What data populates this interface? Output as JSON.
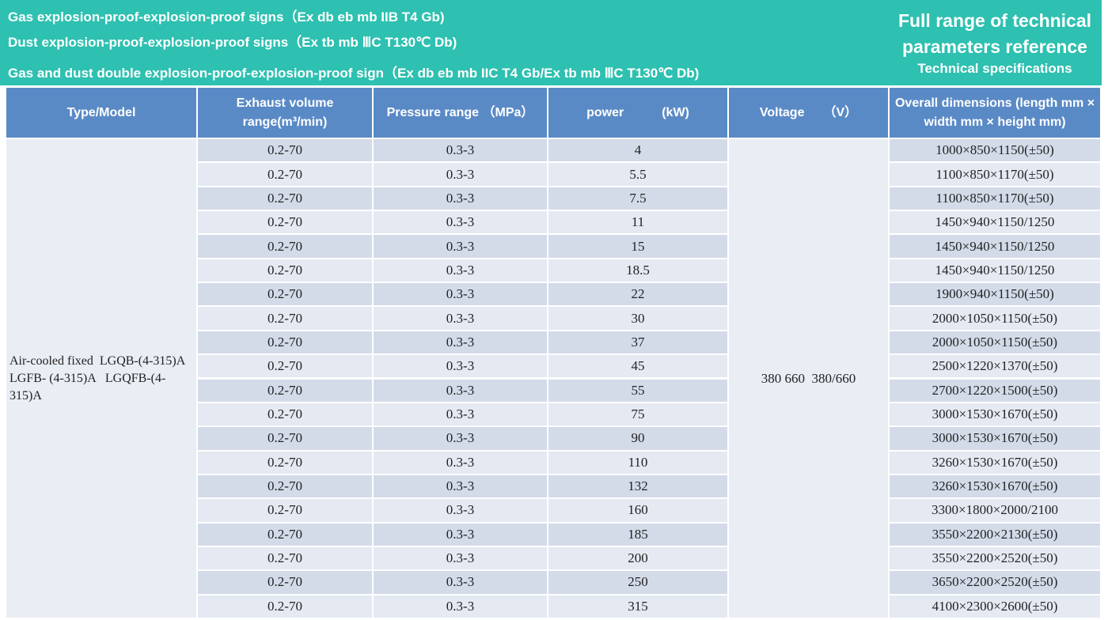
{
  "header": {
    "lines": [
      "Gas explosion-proof-explosion-proof signs（Ex db eb mb IIB T4 Gb)",
      "Dust explosion-proof-explosion-proof signs（Ex tb mb ⅢC T130℃ Db)",
      "Gas and dust double explosion-proof-explosion-proof sign（Ex db eb mb IIC T4 Gb/Ex tb mb ⅢC T130℃ Db)"
    ],
    "title": "Full range of technical parameters reference",
    "subtitle": "Technical specifications"
  },
  "table": {
    "columns": [
      "Type/Model",
      "Exhaust volume range(m³/min)",
      "Pressure range （MPa）",
      "power　　　(kW)",
      "Voltage　　（V）",
      "Overall dimensions (length mm × width mm × height mm)"
    ],
    "model": "Air-cooled fixed  LGQB-(4-315)A    LGFB- (4-315)A   LGQFB-(4-315)A",
    "voltage": "380 660  380/660",
    "rows": [
      [
        "0.2-70",
        "0.3-3",
        "4",
        "1000×850×1150(±50)"
      ],
      [
        "0.2-70",
        "0.3-3",
        "5.5",
        "1100×850×1170(±50)"
      ],
      [
        "0.2-70",
        "0.3-3",
        "7.5",
        "1100×850×1170(±50)"
      ],
      [
        "0.2-70",
        "0.3-3",
        "11",
        "1450×940×1150/1250"
      ],
      [
        "0.2-70",
        "0.3-3",
        "15",
        "1450×940×1150/1250"
      ],
      [
        "0.2-70",
        "0.3-3",
        "18.5",
        "1450×940×1150/1250"
      ],
      [
        "0.2-70",
        "0.3-3",
        "22",
        "1900×940×1150(±50)"
      ],
      [
        "0.2-70",
        "0.3-3",
        "30",
        "2000×1050×1150(±50)"
      ],
      [
        "0.2-70",
        "0.3-3",
        "37",
        "2000×1050×1150(±50)"
      ],
      [
        "0.2-70",
        "0.3-3",
        "45",
        "2500×1220×1370(±50)"
      ],
      [
        "0.2-70",
        "0.3-3",
        "55",
        "2700×1220×1500(±50)"
      ],
      [
        "0.2-70",
        "0.3-3",
        "75",
        "3000×1530×1670(±50)"
      ],
      [
        "0.2-70",
        "0.3-3",
        "90",
        "3000×1530×1670(±50)"
      ],
      [
        "0.2-70",
        "0.3-3",
        "110",
        "3260×1530×1670(±50)"
      ],
      [
        "0.2-70",
        "0.3-3",
        "132",
        "3260×1530×1670(±50)"
      ],
      [
        "0.2-70",
        "0.3-3",
        "160",
        "3300×1800×2000/2100"
      ],
      [
        "0.2-70",
        "0.3-3",
        "185",
        "3550×2200×2130(±50)"
      ],
      [
        "0.2-70",
        "0.3-3",
        "200",
        "3550×2200×2520(±50)"
      ],
      [
        "0.2-70",
        "0.3-3",
        "250",
        "3650×2200×2520(±50)"
      ],
      [
        "0.2-70",
        "0.3-3",
        "315",
        "4100×2300×2600(±50)"
      ]
    ]
  }
}
